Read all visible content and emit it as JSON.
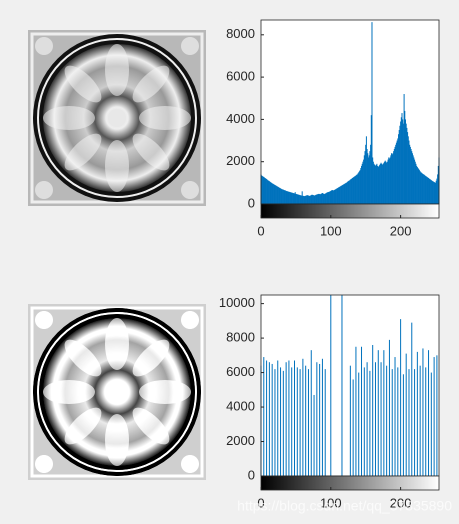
{
  "chart_data": [
    {
      "type": "stem",
      "color": "#0072bd",
      "xlim": [
        0,
        255
      ],
      "xticks": [
        0,
        100,
        200
      ],
      "ylim": [
        0,
        8700
      ],
      "yticks": [
        0,
        2000,
        4000,
        6000,
        8000
      ],
      "x": [
        0,
        1,
        2,
        3,
        4,
        5,
        6,
        7,
        8,
        9,
        10,
        11,
        12,
        13,
        14,
        15,
        16,
        17,
        18,
        19,
        20,
        21,
        22,
        23,
        24,
        25,
        26,
        27,
        28,
        29,
        30,
        31,
        32,
        33,
        34,
        35,
        36,
        37,
        38,
        39,
        40,
        41,
        42,
        43,
        44,
        45,
        46,
        47,
        48,
        49,
        50,
        51,
        52,
        53,
        54,
        55,
        56,
        57,
        58,
        59,
        60,
        61,
        62,
        63,
        64,
        65,
        66,
        67,
        68,
        69,
        70,
        71,
        72,
        73,
        74,
        75,
        76,
        77,
        78,
        79,
        80,
        81,
        82,
        83,
        84,
        85,
        86,
        87,
        88,
        89,
        90,
        91,
        92,
        93,
        94,
        95,
        96,
        97,
        98,
        99,
        100,
        101,
        102,
        103,
        104,
        105,
        106,
        107,
        108,
        109,
        110,
        111,
        112,
        113,
        114,
        115,
        116,
        117,
        118,
        119,
        120,
        121,
        122,
        123,
        124,
        125,
        126,
        127,
        128,
        129,
        130,
        131,
        132,
        133,
        134,
        135,
        136,
        137,
        138,
        139,
        140,
        141,
        142,
        143,
        144,
        145,
        146,
        147,
        148,
        149,
        150,
        151,
        152,
        153,
        154,
        155,
        156,
        157,
        158,
        159,
        160,
        161,
        162,
        163,
        164,
        165,
        166,
        167,
        168,
        169,
        170,
        171,
        172,
        173,
        174,
        175,
        176,
        177,
        178,
        179,
        180,
        181,
        182,
        183,
        184,
        185,
        186,
        187,
        188,
        189,
        190,
        191,
        192,
        193,
        194,
        195,
        196,
        197,
        198,
        199,
        200,
        201,
        202,
        203,
        204,
        205,
        206,
        207,
        208,
        209,
        210,
        211,
        212,
        213,
        214,
        215,
        216,
        217,
        218,
        219,
        220,
        221,
        222,
        223,
        224,
        225,
        226,
        227,
        228,
        229,
        230,
        231,
        232,
        233,
        234,
        235,
        236,
        237,
        238,
        239,
        240,
        241,
        242,
        243,
        244,
        245,
        246,
        247,
        248,
        249,
        250,
        251,
        252,
        253,
        254,
        255
      ],
      "values": [
        1400,
        1350,
        1320,
        1300,
        1280,
        1250,
        1230,
        1200,
        1180,
        1150,
        1120,
        1100,
        1080,
        1050,
        1030,
        1000,
        980,
        960,
        940,
        920,
        900,
        880,
        860,
        840,
        820,
        800,
        780,
        760,
        740,
        720,
        700,
        690,
        680,
        660,
        650,
        640,
        620,
        610,
        600,
        590,
        580,
        570,
        560,
        550,
        540,
        530,
        520,
        510,
        500,
        560,
        480,
        470,
        460,
        450,
        440,
        430,
        420,
        410,
        400,
        600,
        390,
        380,
        370,
        380,
        390,
        400,
        420,
        410,
        400,
        390,
        380,
        400,
        420,
        440,
        430,
        420,
        410,
        400,
        420,
        440,
        450,
        460,
        470,
        480,
        470,
        460,
        480,
        500,
        520,
        500,
        480,
        470,
        490,
        510,
        530,
        550,
        560,
        570,
        580,
        600,
        620,
        640,
        660,
        650,
        640,
        660,
        680,
        700,
        720,
        740,
        760,
        780,
        800,
        820,
        840,
        860,
        880,
        900,
        920,
        940,
        960,
        980,
        1000,
        1020,
        1050,
        1080,
        1100,
        1120,
        1150,
        1180,
        1200,
        1230,
        1250,
        1280,
        1300,
        1320,
        1350,
        1380,
        1400,
        1450,
        1500,
        1550,
        1600,
        1700,
        1800,
        1900,
        2000,
        2100,
        2300,
        2500,
        2800,
        3200,
        2600,
        2400,
        2200,
        2300,
        2500,
        2800,
        4200,
        8600,
        2200,
        2000,
        1900,
        1850,
        1800,
        1850,
        1900,
        1800,
        1750,
        1800,
        1850,
        1900,
        1950,
        1900,
        1850,
        1900,
        1950,
        2000,
        2050,
        2000,
        1950,
        2000,
        2100,
        2200,
        2150,
        2200,
        2300,
        2400,
        2350,
        2400,
        2500,
        2600,
        2700,
        2800,
        2900,
        3000,
        3100,
        3300,
        3500,
        3700,
        3900,
        4100,
        4300,
        4000,
        3800,
        5200,
        4400,
        4000,
        3800,
        3600,
        3400,
        3200,
        3000,
        2800,
        2700,
        2600,
        2500,
        2400,
        2300,
        2200,
        2100,
        2000,
        1900,
        1800,
        1750,
        1700,
        1650,
        1600,
        1550,
        1500,
        1480,
        1450,
        1420,
        1400,
        1380,
        1350,
        1320,
        1300,
        1280,
        1250,
        1230,
        1200,
        1180,
        1150,
        1130,
        1100,
        1080,
        1060,
        1040,
        1020,
        1000,
        1100,
        1200,
        1400,
        1800,
        2200
      ]
    },
    {
      "type": "stem",
      "color": "#0072bd",
      "xlim": [
        0,
        255
      ],
      "xticks": [
        0,
        100,
        200
      ],
      "ylim": [
        0,
        10500
      ],
      "yticks": [
        0,
        2000,
        4000,
        6000,
        8000,
        10000
      ],
      "x": [
        0,
        4,
        8,
        12,
        16,
        20,
        24,
        28,
        32,
        36,
        40,
        44,
        48,
        52,
        56,
        60,
        64,
        68,
        72,
        76,
        80,
        84,
        88,
        92,
        100,
        116,
        128,
        132,
        136,
        140,
        144,
        148,
        152,
        156,
        160,
        164,
        168,
        172,
        176,
        180,
        184,
        188,
        192,
        196,
        200,
        204,
        208,
        212,
        216,
        220,
        224,
        228,
        232,
        236,
        240,
        244,
        248,
        252
      ],
      "values": [
        6400,
        6900,
        6700,
        6600,
        6500,
        6200,
        6700,
        6300,
        6100,
        6600,
        6700,
        6300,
        6700,
        6300,
        6200,
        6800,
        6400,
        6200,
        7300,
        4700,
        6600,
        6500,
        6800,
        6200,
        10500,
        10500,
        6400,
        5600,
        7500,
        6000,
        7500,
        6300,
        6600,
        6100,
        7600,
        6600,
        7300,
        6600,
        7300,
        6400,
        7900,
        6200,
        6900,
        6300,
        9100,
        5900,
        7100,
        6200,
        8900,
        6200,
        7200,
        6400,
        7400,
        6300,
        7300,
        6000,
        6900,
        7000
      ],
      "watermark": "https://blog.csdn.net/qq_37835890"
    }
  ]
}
